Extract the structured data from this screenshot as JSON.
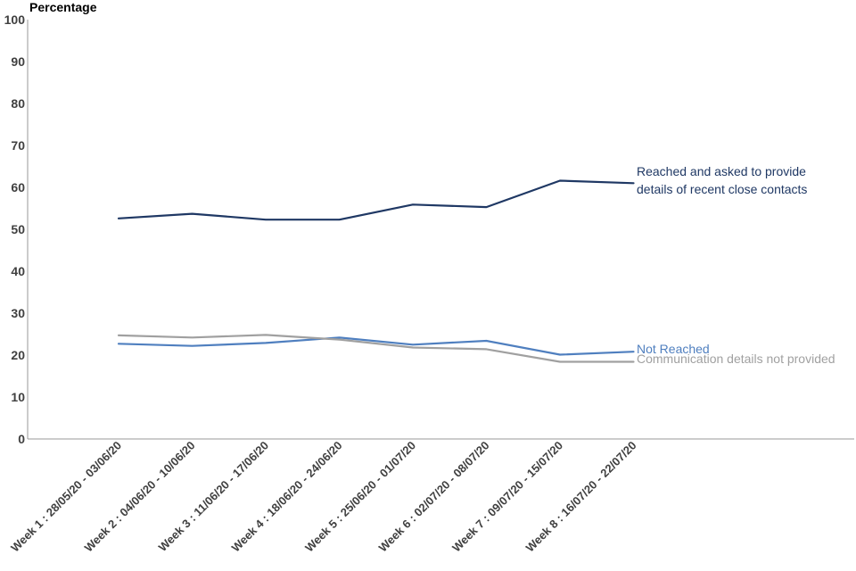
{
  "chart_data": {
    "type": "line",
    "ylabel": "Percentage",
    "ylim": [
      0,
      100
    ],
    "yticks": [
      0,
      10,
      20,
      30,
      40,
      50,
      60,
      70,
      80,
      90,
      100
    ],
    "grid": false,
    "categories": [
      "Week 1 : 28/05/20 - 03/06/20",
      "Week 2 : 04/06/20 - 10/06/20",
      "Week 3 : 11/06/20 - 17/06/20",
      "Week 4 : 18/06/20 - 24/06/20",
      "Week 5 : 25/06/20 - 01/07/20",
      "Week 6 : 02/07/20 - 08/07/20",
      "Week 7 : 09/07/20 - 15/07/20",
      "Week 8 : 16/07/20 - 22/07/20"
    ],
    "series": [
      {
        "name": "Reached and asked to provide details of recent close contacts",
        "label_lines": [
          "Reached and asked to provide",
          " details of recent close contacts"
        ],
        "color": "#1f3864",
        "values": [
          52.6,
          53.7,
          52.3,
          52.3,
          55.9,
          55.3,
          61.6,
          61.0
        ]
      },
      {
        "name": "Not Reached",
        "label_lines": [
          "Not Reached"
        ],
        "color": "#4f7fbf",
        "values": [
          22.7,
          22.2,
          22.9,
          24.2,
          22.5,
          23.4,
          20.1,
          20.8
        ]
      },
      {
        "name": "Communication details not provided",
        "label_lines": [
          "Communication details not provided"
        ],
        "color": "#a0a0a0",
        "values": [
          24.7,
          24.2,
          24.8,
          23.7,
          21.8,
          21.4,
          18.4,
          18.4
        ]
      }
    ]
  }
}
